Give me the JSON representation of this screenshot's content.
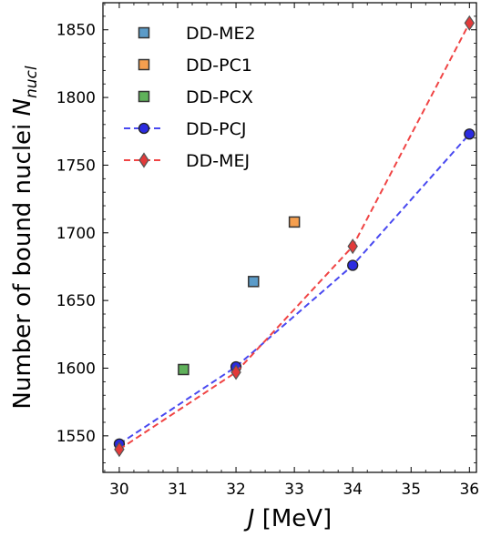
{
  "chart_data": {
    "type": "scatter",
    "xlabel_italic": "J",
    "xlabel_rest": " [MeV]",
    "ylabel_main": "Number of bound nuclei ",
    "ylabel_symbol": "N",
    "ylabel_sub": "nucl",
    "xlim": [
      29.72,
      36.12
    ],
    "ylim": [
      1523,
      1870
    ],
    "xticks": [
      30,
      31,
      32,
      33,
      34,
      35,
      36
    ],
    "yticks": [
      1550,
      1600,
      1650,
      1700,
      1750,
      1800,
      1850
    ],
    "legend_position": "top-left",
    "series": [
      {
        "name": "DD-ME2",
        "marker": "square",
        "line": false,
        "color": "#5b9bc8",
        "points": [
          {
            "x": 32.3,
            "y": 1664
          }
        ]
      },
      {
        "name": "DD-PC1",
        "marker": "square",
        "line": false,
        "color": "#f59f4f",
        "points": [
          {
            "x": 33.0,
            "y": 1708
          }
        ]
      },
      {
        "name": "DD-PCX",
        "marker": "square",
        "line": false,
        "color": "#5fb15a",
        "points": [
          {
            "x": 31.1,
            "y": 1599
          }
        ]
      },
      {
        "name": "DD-PCJ",
        "marker": "circle",
        "line": true,
        "color": "#2b2be0",
        "line_color": "#4848f0",
        "points": [
          {
            "x": 30,
            "y": 1544
          },
          {
            "x": 32,
            "y": 1601
          },
          {
            "x": 34,
            "y": 1676
          },
          {
            "x": 36,
            "y": 1773
          }
        ]
      },
      {
        "name": "DD-MEJ",
        "marker": "diamond",
        "line": true,
        "color": "#e23a3a",
        "line_color": "#f04444",
        "points": [
          {
            "x": 30,
            "y": 1540
          },
          {
            "x": 32,
            "y": 1597
          },
          {
            "x": 34,
            "y": 1690
          },
          {
            "x": 36,
            "y": 1855
          }
        ]
      }
    ]
  }
}
